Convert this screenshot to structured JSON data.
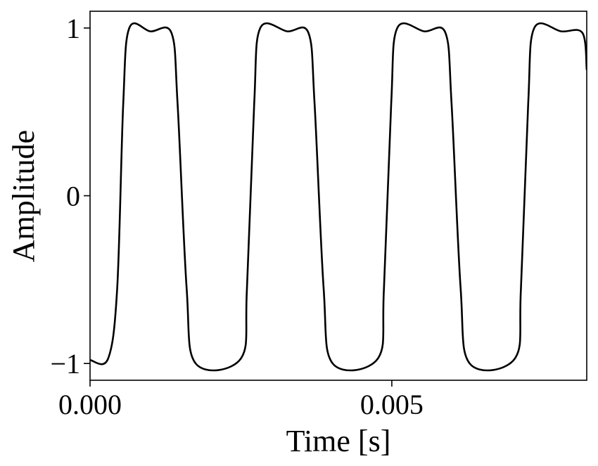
{
  "chart_data": {
    "type": "line",
    "title": "",
    "xlabel": "Time [s]",
    "ylabel": "Amplitude",
    "xlim": [
      0.0,
      0.00823
    ],
    "ylim": [
      -1.1,
      1.1
    ],
    "x_ticks": [
      0.0,
      0.005
    ],
    "x_tick_labels": [
      "0.000",
      "0.005"
    ],
    "y_ticks": [
      -1,
      0,
      1
    ],
    "y_tick_labels": [
      "−1",
      "0",
      "1"
    ],
    "grid": false,
    "legend": "none",
    "series": [
      {
        "line_color": "#000000",
        "description_values": "square-like wave, frequency 440 Hz, amplitude 1 with small ripple, starting low",
        "frequency_hz": 440,
        "period_s": 0.002273,
        "x": [
          0.0,
          0.0003,
          0.00045,
          0.00055,
          0.00065,
          0.001,
          0.00135,
          0.00145,
          0.0016,
          0.00175,
          0.0025,
          0.0026,
          0.00272,
          0.00282,
          0.00327,
          0.00362,
          0.00372,
          0.00387,
          0.00402,
          0.00477,
          0.00487,
          0.00499,
          0.00509,
          0.00554,
          0.00589,
          0.00599,
          0.00614,
          0.00629,
          0.00704,
          0.00714,
          0.00726,
          0.00736,
          0.00781,
          0.00816,
          0.00823
        ],
        "y": [
          -0.98,
          -0.97,
          -0.55,
          0.55,
          1.0,
          0.98,
          0.97,
          0.55,
          -0.55,
          -1.0,
          -0.97,
          -0.55,
          0.55,
          1.0,
          0.98,
          0.97,
          0.55,
          -0.55,
          -1.0,
          -0.97,
          -0.55,
          0.55,
          1.0,
          0.98,
          0.97,
          0.55,
          -0.55,
          -1.0,
          -0.97,
          -0.55,
          0.55,
          1.0,
          0.98,
          0.97,
          0.75
        ]
      }
    ]
  }
}
